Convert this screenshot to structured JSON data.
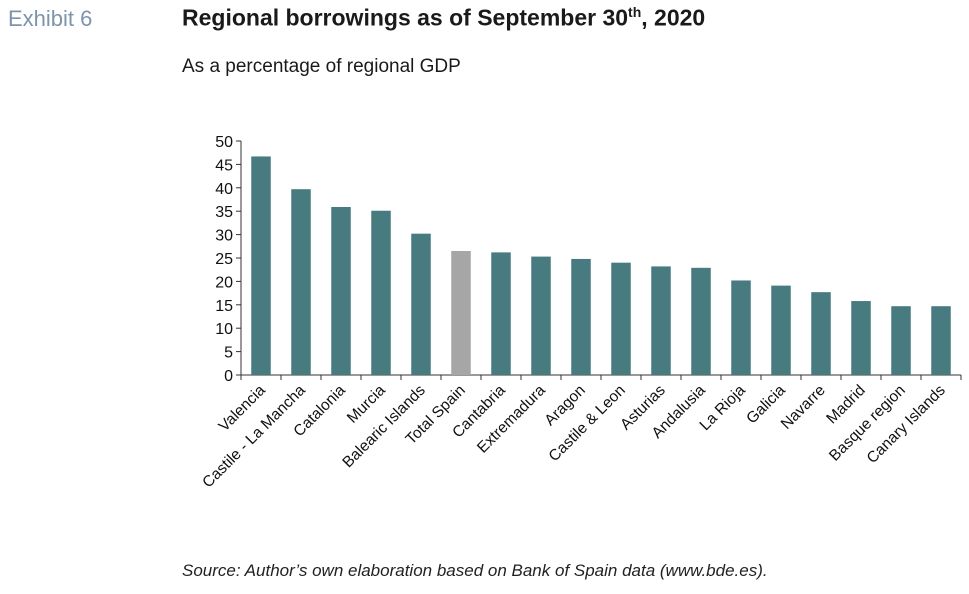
{
  "header": {
    "exhibit": "Exhibit 6",
    "title_main": "Regional borrowings as of September 30",
    "title_sup": "th",
    "title_tail": ", 2020",
    "subtitle": "As a percentage of regional GDP"
  },
  "footer": {
    "source": "Source: Author’s own elaboration based on Bank of Spain data (www.bde.es)."
  },
  "colors": {
    "bar": "#477b80",
    "highlight": "#a6a6a6",
    "exhibit": "#7d94ad"
  },
  "chart_data": {
    "type": "bar",
    "title": "",
    "xlabel": "",
    "ylabel": "",
    "ylim": [
      0,
      50
    ],
    "yticks": [
      0,
      5,
      10,
      15,
      20,
      25,
      30,
      35,
      40,
      45,
      50
    ],
    "grid": false,
    "highlight_category": "Total Spain",
    "categories": [
      "Valencia",
      "Castile - La Mancha",
      "Catalonia",
      "Murcia",
      "Balearic Islands",
      "Total Spain",
      "Cantabria",
      "Extremadura",
      "Aragon",
      "Castile & Leon",
      "Asturias",
      "Andalusia",
      "La Rioja",
      "Galicia",
      "Navarre",
      "Madrid",
      "Basque region",
      "Canary Islands"
    ],
    "values": [
      46.7,
      39.7,
      35.9,
      35.1,
      30.2,
      26.5,
      26.2,
      25.3,
      24.8,
      24.0,
      23.2,
      22.9,
      20.2,
      19.1,
      17.7,
      15.8,
      14.7,
      14.7
    ]
  }
}
